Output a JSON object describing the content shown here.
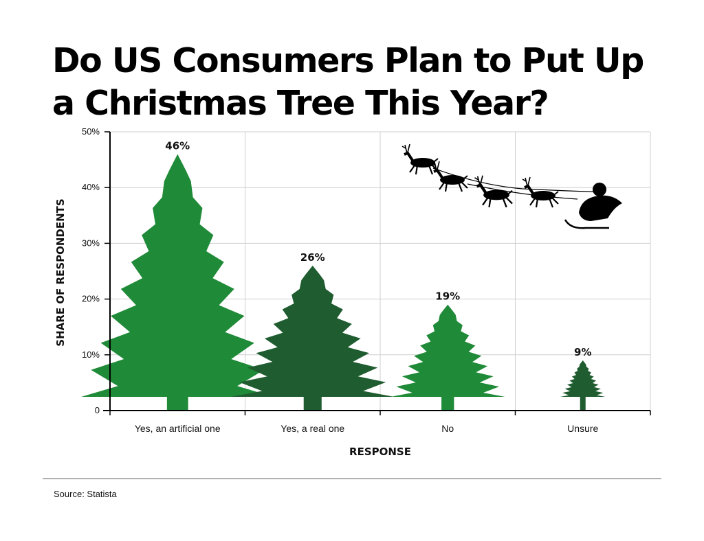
{
  "header": {
    "title_line1": "Do US Consumers Plan to Put Up",
    "title_line2": "a Christmas Tree This Year?"
  },
  "footer": {
    "source": "Source: Statista"
  },
  "colors": {
    "light_tree": "#1f8a37",
    "dark_tree": "#1f5c30",
    "silhouette": "#000000"
  },
  "decoration": {
    "icon": "santa-sleigh-reindeer-icon"
  },
  "chart_data": {
    "type": "bar",
    "mark": "christmas-tree",
    "categories": [
      "Yes, an artificial one",
      "Yes, a real one",
      "No",
      "Unsure"
    ],
    "values": [
      46,
      26,
      19,
      9
    ],
    "data_labels": [
      "46%",
      "26%",
      "19%",
      "9%"
    ],
    "bar_colors": [
      "#1f8a37",
      "#1f5c30",
      "#1f8a37",
      "#1f5c30"
    ],
    "xlabel": "RESPONSE",
    "ylabel": "SHARE OF RESPONDENTS",
    "ylim": [
      0,
      50
    ],
    "yticks": [
      0,
      10,
      20,
      30,
      40,
      50
    ],
    "ytick_labels": [
      "0",
      "10%",
      "20%",
      "30%",
      "40%",
      "50%"
    ],
    "grid": true,
    "legend": "none"
  }
}
